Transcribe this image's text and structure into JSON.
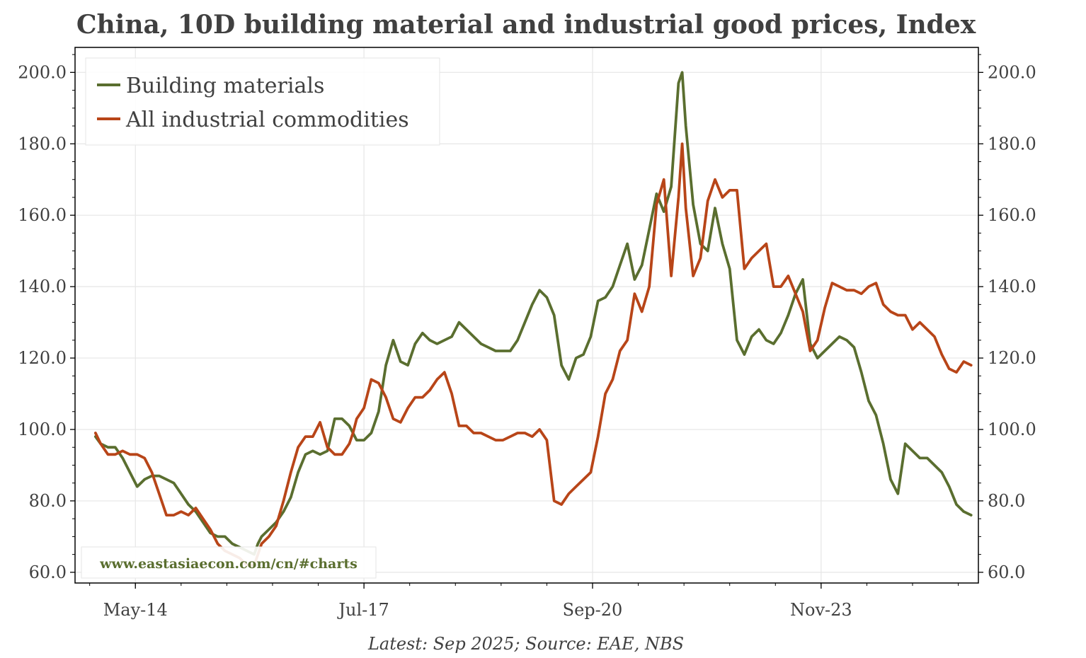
{
  "chart_data": {
    "type": "line",
    "title": "China, 10D building material and industrial good prices, Index",
    "source": "Latest: Sep 2025; Source: EAE, NBS",
    "watermark": "www.eastasiaecon.com/cn/#charts",
    "xlabel": "",
    "ylabel": "",
    "ylim": [
      57,
      207
    ],
    "xlim": [
      2013.55,
      2025.9
    ],
    "y_ticks": [
      60,
      80,
      100,
      120,
      140,
      160,
      180,
      200
    ],
    "y_tick_labels": [
      "60.0",
      "80.0",
      "100.0",
      "120.0",
      "140.0",
      "160.0",
      "180.0",
      "200.0"
    ],
    "x_ticks": [
      2014.375,
      2017.5,
      2020.625,
      2023.75
    ],
    "x_tick_labels": [
      "May-14",
      "Jul-17",
      "Sep-20",
      "Nov-23"
    ],
    "grid": true,
    "dual_y_axis": true,
    "legend_position": "top-left",
    "colors": {
      "text": "#404040",
      "grid": "#e6e6e6",
      "axis": "#000000",
      "watermark": "#5a6e2f"
    },
    "series": [
      {
        "name": "Building materials",
        "color": "#5a6e2f",
        "x": [
          2013.83,
          2013.9,
          2014.0,
          2014.1,
          2014.2,
          2014.3,
          2014.4,
          2014.5,
          2014.6,
          2014.7,
          2014.8,
          2014.9,
          2015.0,
          2015.1,
          2015.2,
          2015.3,
          2015.4,
          2015.5,
          2015.6,
          2015.7,
          2015.8,
          2015.9,
          2016.0,
          2016.05,
          2016.1,
          2016.2,
          2016.3,
          2016.4,
          2016.5,
          2016.6,
          2016.7,
          2016.8,
          2016.9,
          2017.0,
          2017.1,
          2017.2,
          2017.3,
          2017.35,
          2017.4,
          2017.5,
          2017.6,
          2017.7,
          2017.8,
          2017.9,
          2018.0,
          2018.1,
          2018.2,
          2018.3,
          2018.4,
          2018.5,
          2018.6,
          2018.7,
          2018.8,
          2018.9,
          2019.0,
          2019.1,
          2019.2,
          2019.3,
          2019.4,
          2019.5,
          2019.6,
          2019.7,
          2019.8,
          2019.9,
          2020.0,
          2020.1,
          2020.2,
          2020.3,
          2020.4,
          2020.5,
          2020.6,
          2020.7,
          2020.8,
          2020.9,
          2021.0,
          2021.1,
          2021.2,
          2021.3,
          2021.4,
          2021.5,
          2021.6,
          2021.7,
          2021.8,
          2021.85,
          2021.9,
          2022.0,
          2022.1,
          2022.2,
          2022.3,
          2022.4,
          2022.5,
          2022.6,
          2022.7,
          2022.8,
          2022.9,
          2023.0,
          2023.1,
          2023.2,
          2023.3,
          2023.4,
          2023.5,
          2023.6,
          2023.7,
          2023.8,
          2023.9,
          2024.0,
          2024.1,
          2024.2,
          2024.3,
          2024.4,
          2024.5,
          2024.6,
          2024.7,
          2024.8,
          2024.9,
          2025.0,
          2025.1,
          2025.2,
          2025.3,
          2025.4,
          2025.5,
          2025.6,
          2025.7,
          2025.8
        ],
        "values": [
          98,
          96,
          95,
          95,
          92,
          88,
          84,
          86,
          87,
          87,
          86,
          85,
          82,
          79,
          77,
          74,
          71,
          70,
          70,
          68,
          67,
          66,
          65,
          68,
          70,
          72,
          74,
          77,
          81,
          88,
          93,
          94,
          93,
          94,
          103,
          103,
          101,
          99,
          97,
          97,
          99,
          105,
          118,
          125,
          119,
          118,
          124,
          127,
          125,
          124,
          125,
          126,
          130,
          128,
          126,
          124,
          123,
          122,
          122,
          122,
          125,
          130,
          135,
          139,
          137,
          132,
          118,
          114,
          120,
          121,
          126,
          136,
          137,
          140,
          146,
          152,
          142,
          146,
          156,
          166,
          161,
          168,
          197,
          200,
          185,
          163,
          152,
          150,
          162,
          152,
          145,
          125,
          121,
          126,
          128,
          125,
          124,
          127,
          132,
          138,
          142,
          124,
          120,
          122,
          124,
          126,
          125,
          123,
          116,
          108,
          104,
          96,
          86,
          82,
          96,
          94,
          92,
          92,
          90,
          88,
          84,
          79,
          77,
          76
        ]
      },
      {
        "name": "All industrial commodities",
        "color": "#b84518",
        "x": [
          2013.83,
          2013.9,
          2014.0,
          2014.1,
          2014.2,
          2014.3,
          2014.4,
          2014.5,
          2014.6,
          2014.7,
          2014.8,
          2014.9,
          2015.0,
          2015.1,
          2015.2,
          2015.3,
          2015.4,
          2015.5,
          2015.6,
          2015.7,
          2015.8,
          2015.9,
          2016.0,
          2016.05,
          2016.1,
          2016.2,
          2016.3,
          2016.4,
          2016.5,
          2016.6,
          2016.7,
          2016.8,
          2016.9,
          2017.0,
          2017.1,
          2017.2,
          2017.3,
          2017.35,
          2017.4,
          2017.5,
          2017.6,
          2017.7,
          2017.8,
          2017.9,
          2018.0,
          2018.1,
          2018.2,
          2018.3,
          2018.4,
          2018.5,
          2018.6,
          2018.7,
          2018.8,
          2018.9,
          2019.0,
          2019.1,
          2019.2,
          2019.3,
          2019.4,
          2019.5,
          2019.6,
          2019.7,
          2019.8,
          2019.9,
          2020.0,
          2020.1,
          2020.2,
          2020.3,
          2020.4,
          2020.5,
          2020.6,
          2020.7,
          2020.8,
          2020.9,
          2021.0,
          2021.1,
          2021.2,
          2021.3,
          2021.4,
          2021.5,
          2021.6,
          2021.7,
          2021.8,
          2021.85,
          2021.9,
          2022.0,
          2022.1,
          2022.2,
          2022.3,
          2022.4,
          2022.5,
          2022.6,
          2022.7,
          2022.8,
          2022.9,
          2023.0,
          2023.1,
          2023.2,
          2023.3,
          2023.4,
          2023.5,
          2023.6,
          2023.7,
          2023.8,
          2023.9,
          2024.0,
          2024.1,
          2024.2,
          2024.3,
          2024.4,
          2024.5,
          2024.6,
          2024.7,
          2024.8,
          2024.9,
          2025.0,
          2025.1,
          2025.2,
          2025.3,
          2025.4,
          2025.5,
          2025.6,
          2025.7,
          2025.8
        ],
        "values": [
          99,
          96,
          93,
          93,
          94,
          93,
          93,
          92,
          88,
          82,
          76,
          76,
          77,
          76,
          78,
          75,
          72,
          68,
          66,
          65,
          64,
          62,
          62,
          65,
          68,
          70,
          73,
          80,
          88,
          95,
          98,
          98,
          102,
          95,
          93,
          93,
          96,
          99,
          103,
          106,
          114,
          113,
          109,
          103,
          102,
          106,
          109,
          109,
          111,
          114,
          116,
          110,
          101,
          101,
          99,
          99,
          98,
          97,
          97,
          98,
          99,
          99,
          98,
          100,
          97,
          80,
          79,
          82,
          84,
          86,
          88,
          98,
          110,
          114,
          122,
          125,
          138,
          133,
          140,
          163,
          170,
          143,
          165,
          180,
          162,
          143,
          148,
          164,
          170,
          165,
          167,
          167,
          145,
          148,
          150,
          152,
          140,
          140,
          143,
          138,
          133,
          122,
          125,
          134,
          141,
          140,
          139,
          139,
          138,
          140,
          141,
          135,
          133,
          132,
          132,
          128,
          130,
          128,
          126,
          121,
          117,
          116,
          119,
          118
        ]
      }
    ]
  }
}
